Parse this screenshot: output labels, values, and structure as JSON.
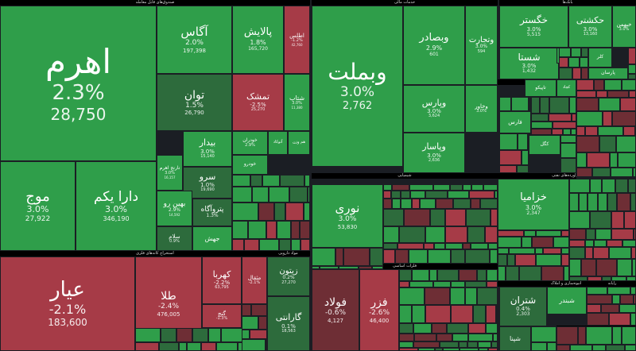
{
  "colors": {
    "green": "#2f9e4a",
    "dark_green": "#2d6b3c",
    "red": "#a63b47",
    "dark_red": "#6e2e35",
    "background": "#1b1e24"
  },
  "sectors": [
    {
      "key": "funds",
      "label": "صندوق‌های قابل معامله"
    },
    {
      "key": "financial",
      "label": "خدمات مالی"
    },
    {
      "key": "banks",
      "label": "بانک‌ها"
    },
    {
      "key": "chemical",
      "label": "شیمیایی"
    },
    {
      "key": "metals",
      "label": "فلزات اساسی"
    },
    {
      "key": "oil",
      "label": "فرآورده‌های نفتی"
    },
    {
      "key": "mining",
      "label": "استخراج کانه‌های فلزی"
    },
    {
      "key": "auto",
      "label": "خودرو"
    },
    {
      "key": "realestate",
      "label": "انبوه‌سازی و املاک"
    },
    {
      "key": "insurance",
      "label": "بیمه"
    },
    {
      "key": "tech",
      "label": "رایانه"
    },
    {
      "key": "pharma",
      "label": "مواد دارویی"
    }
  ],
  "tiles": [
    {
      "name": "اهرم",
      "change": "2.3%",
      "price": "28,750",
      "color": "green"
    },
    {
      "name": "آگاس",
      "change": "2.0%",
      "price": "197,398",
      "color": "green"
    },
    {
      "name": "پالایش",
      "change": "1.8%",
      "price": "165,720",
      "color": "green"
    },
    {
      "name": "اطلس",
      "change": "-1.2%",
      "price": "42,760",
      "color": "red"
    },
    {
      "name": "توان",
      "change": "1.5%",
      "price": "26,790",
      "color": "dark_green"
    },
    {
      "name": "تمشک",
      "change": "-2.5%",
      "price": "25,270",
      "color": "red"
    },
    {
      "name": "شتاب",
      "change": "3.0%",
      "price": "11,380",
      "color": "green"
    },
    {
      "name": "موج",
      "change": "3.0%",
      "price": "27,922",
      "color": "green"
    },
    {
      "name": "دارا یکم",
      "change": "3.0%",
      "price": "346,190",
      "color": "green"
    },
    {
      "name": "بیدار",
      "change": "3.0%",
      "price": "15,140",
      "color": "green"
    },
    {
      "name": "خودران",
      "change": "2.9%",
      "price": "",
      "color": "green"
    },
    {
      "name": "آتوکاد",
      "change": "",
      "price": "",
      "color": "green"
    },
    {
      "name": "هم وزن",
      "change": "",
      "price": "",
      "color": "green"
    },
    {
      "name": "نارنج اهرم",
      "change": "3.0%",
      "price": "16,157",
      "color": "green"
    },
    {
      "name": "سرو",
      "change": "1.0%",
      "price": "19,690",
      "color": "dark_green"
    },
    {
      "name": "بهین رو",
      "change": "2.9%",
      "price": "14,592",
      "color": "green"
    },
    {
      "name": "پتروآگاه",
      "change": "1.3%",
      "price": "",
      "color": "dark_green"
    },
    {
      "name": "سلام",
      "change": "0.9%",
      "price": "",
      "color": "dark_green"
    },
    {
      "name": "جهش",
      "change": "",
      "price": "",
      "color": "green"
    },
    {
      "name": "عیار",
      "change": "-2.1%",
      "price": "183,600",
      "color": "red"
    },
    {
      "name": "طلا",
      "change": "-2.4%",
      "price": "476,005",
      "color": "red"
    },
    {
      "name": "کهربا",
      "change": "-2.2%",
      "price": "63,795",
      "color": "red"
    },
    {
      "name": "مثقال",
      "change": "-2.1%",
      "price": "",
      "color": "red"
    },
    {
      "name": "گنج",
      "change": "-1.3%",
      "price": "",
      "color": "red"
    },
    {
      "name": "زیتون",
      "change": "0.2%",
      "price": "27,270",
      "color": "dark_green"
    },
    {
      "name": "گارانتی",
      "change": "0.1%",
      "price": "18,563",
      "color": "dark_green"
    },
    {
      "name": "وبملت",
      "change": "3.0%",
      "price": "2,762",
      "color": "green"
    },
    {
      "name": "وبصادر",
      "change": "2.9%",
      "price": "601",
      "color": "green"
    },
    {
      "name": "وتجارت",
      "change": "3.0%",
      "price": "594",
      "color": "green"
    },
    {
      "name": "وپارس",
      "change": "3.0%",
      "price": "3,624",
      "color": "green"
    },
    {
      "name": "وپاسار",
      "change": "3.0%",
      "price": "2,636",
      "color": "green"
    },
    {
      "name": "وخاور",
      "change": "3.0%",
      "price": "",
      "color": "green"
    },
    {
      "name": "خگستر",
      "change": "3.0%",
      "price": "5,515",
      "color": "green"
    },
    {
      "name": "حکشتی",
      "change": "3.0%",
      "price": "13,160",
      "color": "green"
    },
    {
      "name": "خبهمن",
      "change": "3.0%",
      "price": "",
      "color": "green"
    },
    {
      "name": "شستا",
      "change": "3.0%",
      "price": "1,432",
      "color": "green"
    },
    {
      "name": "نوری",
      "change": "3.0%",
      "price": "53,830",
      "color": "green"
    },
    {
      "name": "فولاد",
      "change": "-0.6%",
      "price": "4,127",
      "color": "dark_red"
    },
    {
      "name": "فزر",
      "change": "-2.6%",
      "price": "46,400",
      "color": "red"
    },
    {
      "name": "خزامیا",
      "change": "3.0%",
      "price": "2,347",
      "color": "green"
    },
    {
      "name": "شتران",
      "change": "0.4%",
      "price": "2,303",
      "color": "dark_green"
    },
    {
      "name": "شبندر",
      "change": "",
      "price": "",
      "color": "green"
    },
    {
      "name": "شپنا",
      "change": "",
      "price": "",
      "color": "dark_green"
    },
    {
      "name": "تاپیکو",
      "change": "",
      "price": "",
      "color": "green"
    },
    {
      "name": "کچاد",
      "change": "",
      "price": "",
      "color": "green"
    },
    {
      "name": "فارس",
      "change": "",
      "price": "",
      "color": "green"
    },
    {
      "name": "کگل",
      "change": "",
      "price": "",
      "color": "green"
    },
    {
      "name": "خساپا",
      "change": "",
      "price": "",
      "color": "green"
    },
    {
      "name": "کلر",
      "change": "",
      "price": "",
      "color": "green"
    },
    {
      "name": "پارسان",
      "change": "",
      "price": "",
      "color": "green"
    },
    {
      "name": "خودرو",
      "change": "",
      "price": "",
      "color": "green"
    }
  ]
}
